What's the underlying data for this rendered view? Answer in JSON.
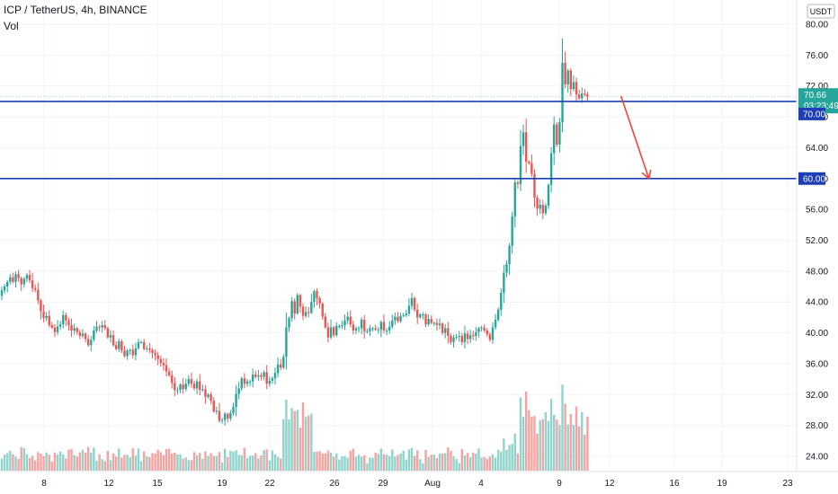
{
  "header": {
    "title": "ICP / TetherUS, 4h, BINANCE",
    "vol_label": "Vol"
  },
  "currency_badge": "USDT",
  "colors": {
    "up": "#26a69a",
    "down": "#ef5350",
    "up_vol": "#8fd3cb",
    "down_vol": "#f5a3a1",
    "level": "#1c3fb3",
    "arrow": "#f44336",
    "price_badge": "#26a69a",
    "level_badge": "#1c3fb3",
    "grid": "#f0f3fa"
  },
  "chart_data": {
    "type": "candlestick",
    "symbol": "ICP / TetherUS",
    "interval": "4h",
    "exchange": "BINANCE",
    "ylim": [
      22,
      82
    ],
    "y_ticks": [
      "24.00",
      "28.00",
      "32.00",
      "36.00",
      "40.00",
      "44.00",
      "48.00",
      "52.00",
      "56.00",
      "60.00",
      "64.00",
      "68.00",
      "72.00",
      "76.00",
      "80.00"
    ],
    "x_ticks": [
      "8",
      "12",
      "15",
      "19",
      "22",
      "26",
      "29",
      "Aug",
      "4",
      "9",
      "12",
      "16",
      "19",
      "23"
    ],
    "closes": [
      45.5,
      46.0,
      46.6,
      47.2,
      46.6,
      47.6,
      47.1,
      46.3,
      47.0,
      47.5,
      46.8,
      45.8,
      45.6,
      44.2,
      42.8,
      41.9,
      42.2,
      41.0,
      40.7,
      40.1,
      40.8,
      41.1,
      42.3,
      41.6,
      41.0,
      40.3,
      40.6,
      40.1,
      39.6,
      39.9,
      39.2,
      38.4,
      39.1,
      40.3,
      40.8,
      40.7,
      41.0,
      40.6,
      39.4,
      39.7,
      38.4,
      37.9,
      38.9,
      37.7,
      37.0,
      37.7,
      37.8,
      37.1,
      38.0,
      38.8,
      38.8,
      37.9,
      38.0,
      37.8,
      37.4,
      37.1,
      36.6,
      36.1,
      35.8,
      35.0,
      34.5,
      33.5,
      32.6,
      32.6,
      33.3,
      32.7,
      33.4,
      34.0,
      33.4,
      32.8,
      33.7,
      32.6,
      32.7,
      31.7,
      32.0,
      31.2,
      29.8,
      29.9,
      28.6,
      28.7,
      29.5,
      28.9,
      29.6,
      30.4,
      32.1,
      32.8,
      34.1,
      33.4,
      33.7,
      33.7,
      34.6,
      34.3,
      34.5,
      34.3,
      34.9,
      33.4,
      33.8,
      34.1,
      34.8,
      35.9,
      35.5,
      36.9,
      40.7,
      41.9,
      44.1,
      42.5,
      44.9,
      43.4,
      42.2,
      42.7,
      42.6,
      44.0,
      45.4,
      44.5,
      43.8,
      42.1,
      40.7,
      39.4,
      40.7,
      39.7,
      40.9,
      40.9,
      41.0,
      41.6,
      42.1,
      41.1,
      40.3,
      40.6,
      40.6,
      41.7,
      40.2,
      40.2,
      40.6,
      40.6,
      40.4,
      40.4,
      41.4,
      40.3,
      40.3,
      40.8,
      41.6,
      42.1,
      41.5,
      42.2,
      42.3,
      42.5,
      43.5,
      44.5,
      43.0,
      42.0,
      42.4,
      42.4,
      41.1,
      41.8,
      41.3,
      41.3,
      41.0,
      41.2,
      40.0,
      40.6,
      39.6,
      38.8,
      39.4,
      39.5,
      39.6,
      38.8,
      39.9,
      39.2,
      39.7,
      39.6,
      40.1,
      40.6,
      40.7,
      40.3,
      39.8,
      39.1,
      40.7,
      41.7,
      43.0,
      45.2,
      47.8,
      48.9,
      51.3,
      55.1,
      59.5,
      59.3,
      64.2,
      66.0,
      62.2,
      62.0,
      60.6,
      57.5,
      56.1,
      56.6,
      55.5,
      56.5,
      59.2,
      63.3,
      67.0,
      64.4,
      67.3,
      75.0,
      72.2,
      74.0,
      71.6,
      72.5,
      70.9,
      70.4,
      71.0,
      70.9,
      70.6
    ],
    "candle_range": [
      8,
      218
    ],
    "levels": [
      {
        "value": 70.0,
        "label": "70.00"
      },
      {
        "value": 60.0,
        "label": "60.00"
      }
    ],
    "last_price": {
      "value": 70.66,
      "label": "70.66",
      "countdown": "03:23:49"
    },
    "projection_arrow": {
      "from": [
        222,
        70.7
      ],
      "to": [
        232,
        60.0
      ]
    },
    "volume": {
      "label": "Vol",
      "visible": true
    },
    "grid": true
  }
}
